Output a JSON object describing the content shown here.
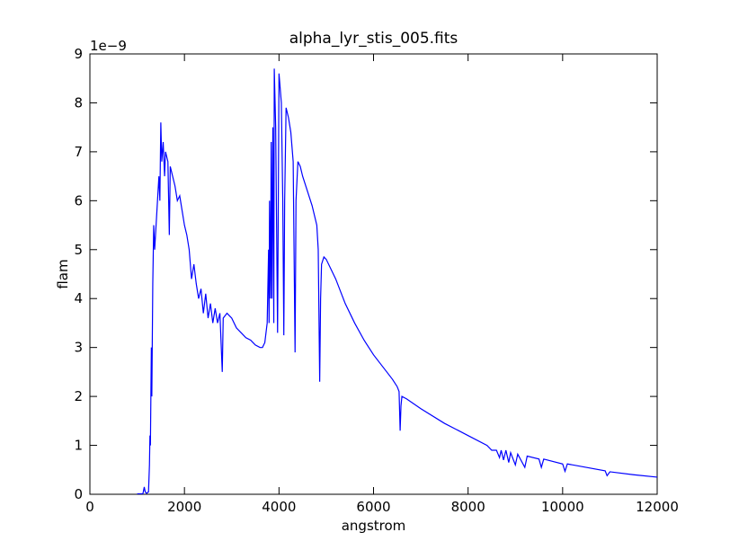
{
  "chart_data": {
    "type": "line",
    "title": "alpha_lyr_stis_005.fits",
    "x_label": "angstrom",
    "y_label": "flam",
    "y_offset_text": "1e−9",
    "color": "#0000ff",
    "x": [
      1000,
      1120,
      1130,
      1150,
      1170,
      1200,
      1240,
      1260,
      1270,
      1280,
      1290,
      1300,
      1310,
      1330,
      1350,
      1370,
      1400,
      1430,
      1460,
      1480,
      1500,
      1520,
      1550,
      1580,
      1600,
      1650,
      1680,
      1700,
      1750,
      1800,
      1850,
      1900,
      1950,
      2000,
      2050,
      2100,
      2150,
      2200,
      2250,
      2300,
      2350,
      2400,
      2450,
      2500,
      2550,
      2600,
      2650,
      2700,
      2750,
      2800,
      2820,
      2900,
      3000,
      3100,
      3200,
      3300,
      3400,
      3500,
      3600,
      3650,
      3700,
      3750,
      3780,
      3790,
      3800,
      3820,
      3835,
      3850,
      3870,
      3890,
      3900,
      3930,
      3970,
      4000,
      4050,
      4080,
      4102,
      4120,
      4150,
      4200,
      4250,
      4300,
      4340,
      4360,
      4400,
      4450,
      4500,
      4600,
      4700,
      4800,
      4830,
      4861,
      4880,
      4900,
      4950,
      5000,
      5200,
      5400,
      5600,
      5800,
      6000,
      6200,
      6400,
      6500,
      6540,
      6563,
      6580,
      6600,
      6700,
      7000,
      7500,
      8000,
      8400,
      8500,
      8600,
      8665,
      8700,
      8750,
      8800,
      8860,
      8900,
      9000,
      9050,
      9200,
      9250,
      9500,
      9550,
      9600,
      10000,
      10050,
      10100,
      10500,
      10900,
      10940,
      11000,
      11500,
      12000
    ],
    "values": [
      0.01,
      0.01,
      0.05,
      0.15,
      0.05,
      0.02,
      0.05,
      0.6,
      1.2,
      1.0,
      2.0,
      3.0,
      2.0,
      4.3,
      5.5,
      5.0,
      5.5,
      6.0,
      6.5,
      6.0,
      7.6,
      6.8,
      7.2,
      6.5,
      7.0,
      6.8,
      5.3,
      6.7,
      6.5,
      6.3,
      6.0,
      6.1,
      5.8,
      5.5,
      5.3,
      5.0,
      4.4,
      4.7,
      4.3,
      4.0,
      4.2,
      3.7,
      4.1,
      3.6,
      3.9,
      3.5,
      3.8,
      3.5,
      3.7,
      2.5,
      3.6,
      3.7,
      3.6,
      3.4,
      3.3,
      3.2,
      3.15,
      3.05,
      3.0,
      3.0,
      3.1,
      3.5,
      5.0,
      3.5,
      6.0,
      4.0,
      7.2,
      4.0,
      7.5,
      3.5,
      8.7,
      7.5,
      3.3,
      8.6,
      8.0,
      6.0,
      3.25,
      6.0,
      7.9,
      7.7,
      7.4,
      6.8,
      2.9,
      6.0,
      6.8,
      6.7,
      6.5,
      6.2,
      5.9,
      5.5,
      5.0,
      2.3,
      4.0,
      4.7,
      4.85,
      4.8,
      4.4,
      3.9,
      3.5,
      3.15,
      2.85,
      2.6,
      2.35,
      2.2,
      2.1,
      1.3,
      1.8,
      2.0,
      1.95,
      1.75,
      1.45,
      1.2,
      1.0,
      0.9,
      0.9,
      0.75,
      0.9,
      0.7,
      0.9,
      0.65,
      0.85,
      0.6,
      0.82,
      0.55,
      0.78,
      0.72,
      0.55,
      0.72,
      0.62,
      0.47,
      0.62,
      0.55,
      0.48,
      0.38,
      0.46,
      0.4,
      0.35
    ],
    "xlim": [
      0,
      12000
    ],
    "ylim": [
      0,
      9
    ],
    "xticks": [
      0,
      2000,
      4000,
      6000,
      8000,
      10000,
      12000
    ],
    "yticks": [
      0,
      1,
      2,
      3,
      4,
      5,
      6,
      7,
      8,
      9
    ]
  }
}
